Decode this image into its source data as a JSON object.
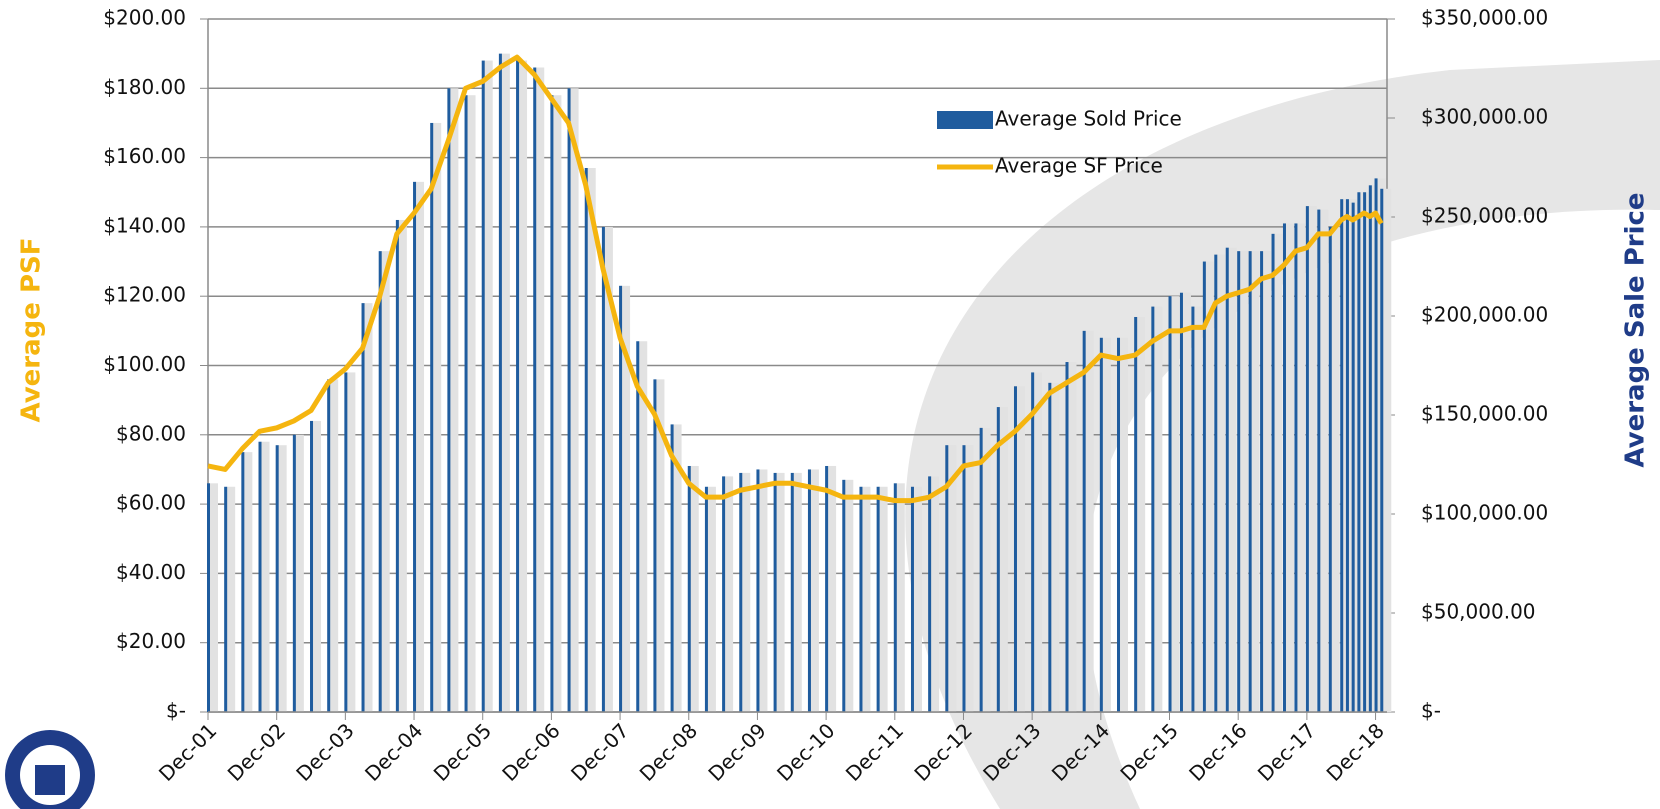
{
  "chart_data": {
    "type": "bar-line",
    "y_label": "Average PSF",
    "y2_label": "Average Sale Price",
    "x": [
      0,
      3,
      6,
      9,
      12,
      15,
      18,
      21,
      24,
      27,
      30,
      33,
      36,
      39,
      42,
      45,
      48,
      51,
      54,
      57,
      60,
      63,
      66,
      69,
      72,
      75,
      78,
      81,
      84,
      87,
      90,
      93,
      96,
      99,
      102,
      105,
      108,
      111,
      114,
      117,
      120,
      123,
      126,
      129,
      132,
      135,
      138,
      141,
      144,
      147,
      150,
      153,
      156,
      159,
      162,
      165,
      168,
      170,
      172,
      174,
      176,
      178,
      180,
      182,
      184,
      186,
      188,
      190,
      192,
      194,
      196,
      198,
      199,
      200,
      201,
      202,
      203,
      204,
      205
    ],
    "xlim": [
      0,
      206
    ],
    "xticks": [
      {
        "value": 0,
        "label": "Dec-01"
      },
      {
        "value": 12,
        "label": "Dec-02"
      },
      {
        "value": 24,
        "label": "Dec-03"
      },
      {
        "value": 36,
        "label": "Dec-04"
      },
      {
        "value": 48,
        "label": "Dec-05"
      },
      {
        "value": 60,
        "label": "Dec-06"
      },
      {
        "value": 72,
        "label": "Dec-07"
      },
      {
        "value": 84,
        "label": "Dec-08"
      },
      {
        "value": 96,
        "label": "Dec-09"
      },
      {
        "value": 108,
        "label": "Dec-10"
      },
      {
        "value": 120,
        "label": "Dec-11"
      },
      {
        "value": 132,
        "label": "Dec-12"
      },
      {
        "value": 144,
        "label": "Dec-13"
      },
      {
        "value": 156,
        "label": "Dec-14"
      },
      {
        "value": 168,
        "label": "Dec-15"
      },
      {
        "value": 180,
        "label": "Dec-16"
      },
      {
        "value": 192,
        "label": "Dec-17"
      },
      {
        "value": 204,
        "label": "Dec-18"
      }
    ],
    "ylim": [
      0,
      200
    ],
    "yticks": [
      {
        "value": 0,
        "label": "$-"
      },
      {
        "value": 20,
        "label": "$20.00"
      },
      {
        "value": 40,
        "label": "$40.00"
      },
      {
        "value": 60,
        "label": "$60.00"
      },
      {
        "value": 80,
        "label": "$80.00"
      },
      {
        "value": 100,
        "label": "$100.00"
      },
      {
        "value": 120,
        "label": "$120.00"
      },
      {
        "value": 140,
        "label": "$140.00"
      },
      {
        "value": 160,
        "label": "$160.00"
      },
      {
        "value": 180,
        "label": "$180.00"
      },
      {
        "value": 200,
        "label": "$200.00"
      }
    ],
    "y2lim": [
      0,
      350000
    ],
    "y2ticks": [
      {
        "value": 0,
        "label": "$-"
      },
      {
        "value": 50000,
        "label": "$50,000.00"
      },
      {
        "value": 100000,
        "label": "$100,000.00"
      },
      {
        "value": 150000,
        "label": "$150,000.00"
      },
      {
        "value": 200000,
        "label": "$200,000.00"
      },
      {
        "value": 250000,
        "label": "$250,000.00"
      },
      {
        "value": 300000,
        "label": "$300,000.00"
      },
      {
        "value": 350000,
        "label": "$350,000.00"
      }
    ],
    "grid": true,
    "series": [
      {
        "name": "Average Sold Price",
        "type": "bar",
        "axis": "y2",
        "color": "#1f5c9e",
        "values": [
          115500,
          113750,
          131250,
          136500,
          134750,
          140000,
          147000,
          168000,
          171500,
          206500,
          232750,
          248500,
          267750,
          297500,
          315000,
          311500,
          329000,
          332500,
          329000,
          325500,
          311500,
          315000,
          274750,
          245000,
          215250,
          187250,
          168000,
          145250,
          124250,
          113750,
          119000,
          120750,
          122500,
          120750,
          120750,
          122500,
          124250,
          117250,
          113750,
          113750,
          115500,
          113750,
          119000,
          134750,
          134750,
          143500,
          154000,
          164500,
          171500,
          166250,
          176750,
          192500,
          189000,
          189000,
          199500,
          204750,
          210000,
          211750,
          204750,
          227500,
          231000,
          234500,
          232750,
          232750,
          232750,
          241500,
          246750,
          246750,
          255500,
          253750,
          245000,
          259000,
          259000,
          257250,
          262500,
          262500,
          266000,
          269500,
          264250
        ]
      },
      {
        "name": "Average SF Price",
        "type": "line",
        "axis": "y",
        "color": "#f5b50f",
        "values": [
          71,
          70,
          76,
          81,
          82,
          84,
          87,
          95,
          99,
          105,
          120,
          138,
          144,
          151,
          165,
          180,
          182,
          186,
          189,
          184,
          177,
          170,
          152,
          128,
          108,
          94,
          86,
          74,
          66,
          62,
          62,
          64,
          65,
          66,
          66,
          65,
          64,
          62,
          62,
          62,
          61,
          61,
          62,
          65,
          71,
          72,
          77,
          81,
          86,
          92,
          95,
          98,
          103,
          102,
          103,
          107,
          110,
          110,
          111,
          111,
          118,
          120,
          121,
          122,
          125,
          126,
          129,
          133,
          134,
          138,
          138,
          142,
          143,
          142,
          143,
          144,
          143,
          144,
          141
        ]
      }
    ]
  }
}
